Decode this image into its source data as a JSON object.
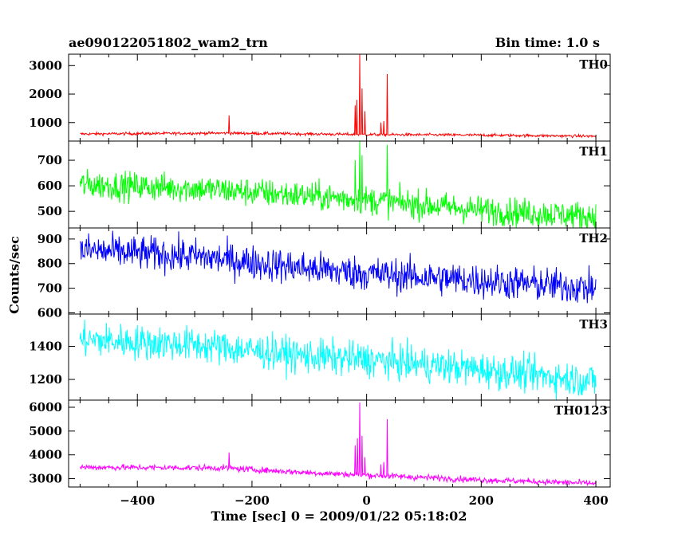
{
  "header": {
    "left_title": "ae090122051802_wam2_trn",
    "right_title": "Bin time: 1.0 s"
  },
  "chart_data": {
    "type": "line",
    "x_label": "Time [sec] 0 = 2009/01/22 05:18:02",
    "y_label": "Counts/sec",
    "x_range": [
      -520,
      425
    ],
    "x_ticks": [
      -400,
      -200,
      0,
      200,
      400
    ],
    "grid": false,
    "panels": [
      {
        "name": "TH0",
        "color": "#ff0000",
        "y_range": [
          350,
          3400
        ],
        "y_ticks": [
          1000,
          2000,
          3000
        ],
        "baseline": [
          [
            -500,
            600
          ],
          [
            -250,
            630
          ],
          [
            -100,
            600
          ],
          [
            0,
            580
          ],
          [
            200,
            560
          ],
          [
            400,
            520
          ]
        ],
        "noise": 35,
        "spikes": [
          [
            -240,
            1250
          ],
          [
            -20,
            1600
          ],
          [
            -17,
            1800
          ],
          [
            -12,
            3400
          ],
          [
            -8,
            2200
          ],
          [
            -3,
            1400
          ],
          [
            25,
            1000
          ],
          [
            30,
            1050
          ],
          [
            36,
            2700
          ]
        ]
      },
      {
        "name": "TH1",
        "color": "#00ff00",
        "y_range": [
          435,
          775
        ],
        "y_ticks": [
          500,
          600,
          700
        ],
        "baseline": [
          [
            -500,
            605
          ],
          [
            -300,
            590
          ],
          [
            -100,
            560
          ],
          [
            0,
            545
          ],
          [
            200,
            505
          ],
          [
            400,
            480
          ]
        ],
        "noise": 40,
        "spikes": [
          [
            -20,
            700
          ],
          [
            -12,
            775
          ],
          [
            -8,
            720
          ],
          [
            36,
            760
          ]
        ]
      },
      {
        "name": "TH2",
        "color": "#0000ff",
        "y_range": [
          595,
          945
        ],
        "y_ticks": [
          600,
          700,
          800,
          900
        ],
        "baseline": [
          [
            -500,
            855
          ],
          [
            -300,
            830
          ],
          [
            -100,
            780
          ],
          [
            0,
            760
          ],
          [
            200,
            730
          ],
          [
            400,
            700
          ]
        ],
        "noise": 50,
        "spikes": []
      },
      {
        "name": "TH3",
        "color": "#00ffff",
        "y_range": [
          1075,
          1595
        ],
        "y_ticks": [
          1200,
          1400
        ],
        "baseline": [
          [
            -500,
            1440
          ],
          [
            -300,
            1410
          ],
          [
            -100,
            1340
          ],
          [
            0,
            1320
          ],
          [
            200,
            1260
          ],
          [
            400,
            1190
          ]
        ],
        "noise": 75,
        "spikes": []
      },
      {
        "name": "TH0123",
        "color": "#ff00ff",
        "y_range": [
          2650,
          6300
        ],
        "y_ticks": [
          3000,
          4000,
          5000,
          6000
        ],
        "baseline": [
          [
            -500,
            3480
          ],
          [
            -250,
            3450
          ],
          [
            -100,
            3250
          ],
          [
            0,
            3150
          ],
          [
            200,
            2950
          ],
          [
            400,
            2800
          ]
        ],
        "noise": 90,
        "spikes": [
          [
            -240,
            4100
          ],
          [
            -20,
            4400
          ],
          [
            -16,
            4700
          ],
          [
            -12,
            6200
          ],
          [
            -8,
            4800
          ],
          [
            -3,
            3900
          ],
          [
            25,
            3600
          ],
          [
            30,
            3700
          ],
          [
            36,
            5500
          ]
        ]
      }
    ]
  }
}
